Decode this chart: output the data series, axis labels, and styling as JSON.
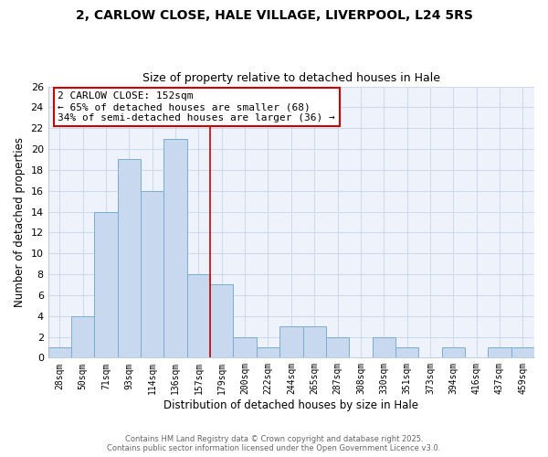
{
  "title": "2, CARLOW CLOSE, HALE VILLAGE, LIVERPOOL, L24 5RS",
  "subtitle": "Size of property relative to detached houses in Hale",
  "xlabel": "Distribution of detached houses by size in Hale",
  "ylabel": "Number of detached properties",
  "bar_color": "#c8d9ef",
  "bar_edge_color": "#7aadd4",
  "categories": [
    "28sqm",
    "50sqm",
    "71sqm",
    "93sqm",
    "114sqm",
    "136sqm",
    "157sqm",
    "179sqm",
    "200sqm",
    "222sqm",
    "244sqm",
    "265sqm",
    "287sqm",
    "308sqm",
    "330sqm",
    "351sqm",
    "373sqm",
    "394sqm",
    "416sqm",
    "437sqm",
    "459sqm"
  ],
  "values": [
    1,
    4,
    14,
    19,
    16,
    21,
    8,
    7,
    2,
    1,
    3,
    3,
    2,
    0,
    2,
    1,
    0,
    1,
    0,
    1,
    1
  ],
  "ylim": [
    0,
    26
  ],
  "yticks": [
    0,
    2,
    4,
    6,
    8,
    10,
    12,
    14,
    16,
    18,
    20,
    22,
    24,
    26
  ],
  "vline_bar_idx": 6,
  "vline_color": "#cc0000",
  "annotation_title": "2 CARLOW CLOSE: 152sqm",
  "annotation_line1": "← 65% of detached houses are smaller (68)",
  "annotation_line2": "34% of semi-detached houses are larger (36) →",
  "annotation_box_color": "#ffffff",
  "annotation_box_edge": "#cc0000",
  "grid_color": "#ccdaec",
  "bg_color": "#eef3fb",
  "footer1": "Contains HM Land Registry data © Crown copyright and database right 2025.",
  "footer2": "Contains public sector information licensed under the Open Government Licence v3.0."
}
